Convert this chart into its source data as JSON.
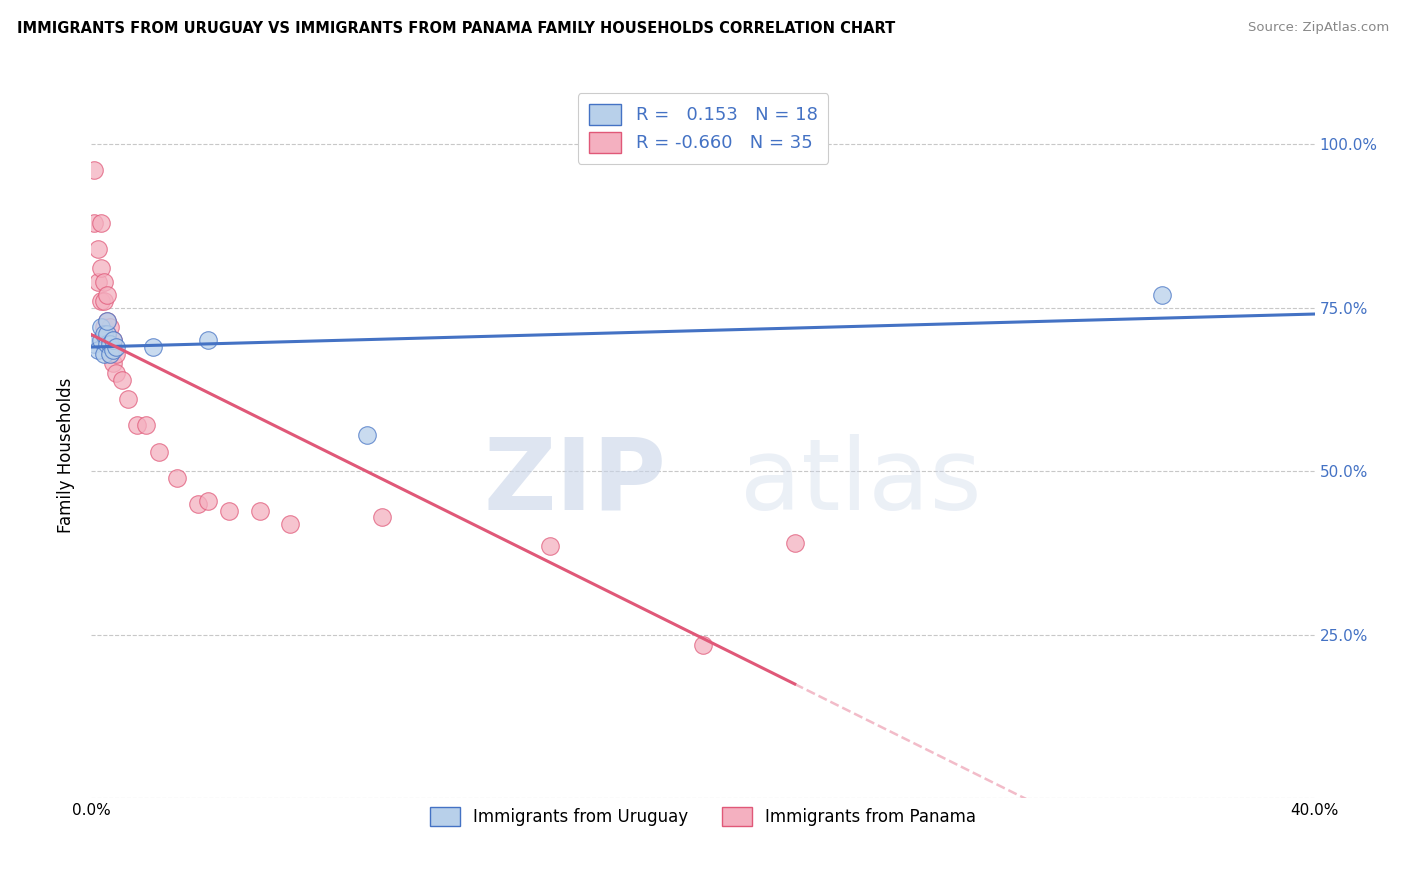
{
  "title": "IMMIGRANTS FROM URUGUAY VS IMMIGRANTS FROM PANAMA FAMILY HOUSEHOLDS CORRELATION CHART",
  "source": "Source: ZipAtlas.com",
  "ylabel": "Family Households",
  "watermark_zip": "ZIP",
  "watermark_atlas": "atlas",
  "uruguay_color": "#b8d0ea",
  "uruguay_edge_color": "#4472c4",
  "panama_color": "#f4b0c0",
  "panama_edge_color": "#e05878",
  "uruguay_R": "0.153",
  "uruguay_N": "18",
  "panama_R": "-0.660",
  "panama_N": "35",
  "uruguay_label": "Immigrants from Uruguay",
  "panama_label": "Immigrants from Panama",
  "uruguay_x": [
    0.001,
    0.002,
    0.003,
    0.003,
    0.004,
    0.004,
    0.005,
    0.005,
    0.005,
    0.006,
    0.006,
    0.007,
    0.007,
    0.008,
    0.02,
    0.038,
    0.09,
    0.35
  ],
  "uruguay_y": [
    0.695,
    0.685,
    0.7,
    0.72,
    0.71,
    0.68,
    0.695,
    0.71,
    0.73,
    0.695,
    0.68,
    0.685,
    0.7,
    0.69,
    0.69,
    0.7,
    0.555,
    0.77
  ],
  "panama_x": [
    0.001,
    0.001,
    0.002,
    0.002,
    0.003,
    0.003,
    0.003,
    0.004,
    0.004,
    0.004,
    0.005,
    0.005,
    0.005,
    0.006,
    0.006,
    0.006,
    0.007,
    0.007,
    0.008,
    0.008,
    0.01,
    0.012,
    0.015,
    0.018,
    0.022,
    0.028,
    0.035,
    0.038,
    0.045,
    0.055,
    0.065,
    0.095,
    0.15,
    0.2,
    0.23
  ],
  "panama_y": [
    0.96,
    0.88,
    0.84,
    0.79,
    0.88,
    0.81,
    0.76,
    0.79,
    0.76,
    0.72,
    0.77,
    0.73,
    0.71,
    0.72,
    0.69,
    0.68,
    0.7,
    0.665,
    0.68,
    0.65,
    0.64,
    0.61,
    0.57,
    0.57,
    0.53,
    0.49,
    0.45,
    0.455,
    0.44,
    0.44,
    0.42,
    0.43,
    0.385,
    0.235,
    0.39
  ],
  "xlim": [
    0.0,
    0.4
  ],
  "ylim": [
    0.0,
    1.05
  ],
  "yticks": [
    0.0,
    0.25,
    0.5,
    0.75,
    1.0
  ],
  "right_ytick_labels": [
    "",
    "25.0%",
    "50.0%",
    "75.0%",
    "100.0%"
  ],
  "xticks": [
    0.0,
    0.1,
    0.2,
    0.3,
    0.4
  ],
  "xtick_labels": [
    "0.0%",
    "",
    "",
    "",
    "40.0%"
  ],
  "bg_color": "#ffffff",
  "grid_color": "#c8c8c8",
  "blue_label_color": "#4472c4"
}
